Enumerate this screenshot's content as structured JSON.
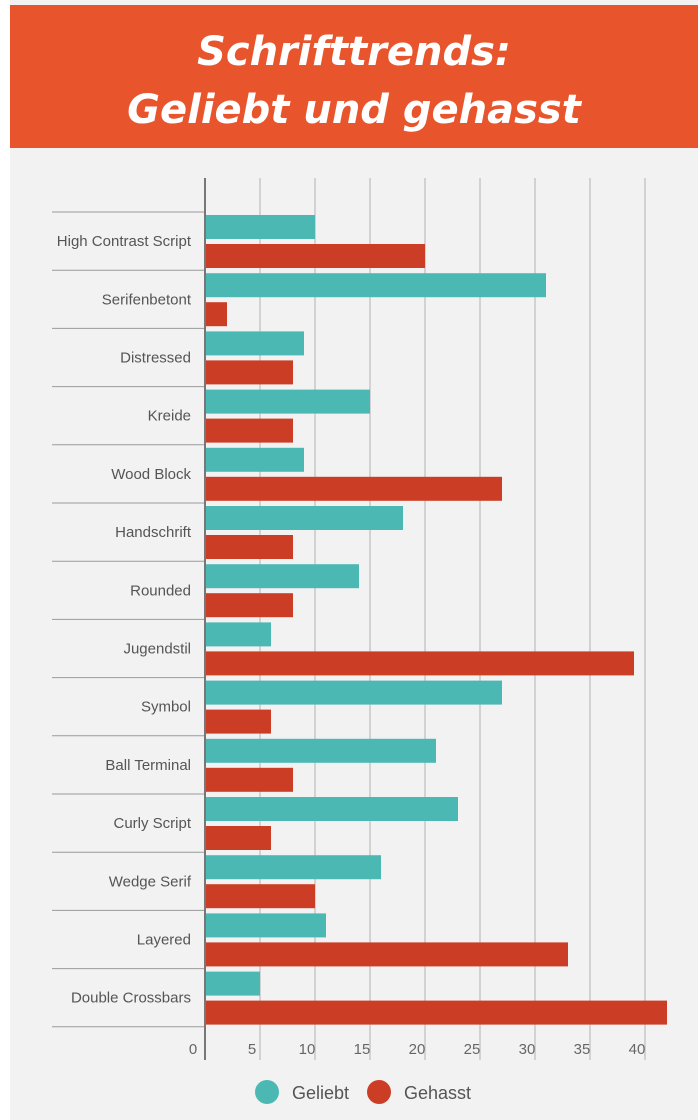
{
  "header": {
    "title_line1": "Schrifttrends:",
    "title_line2": "Geliebt und gehasst"
  },
  "colors": {
    "header_bg": "#e8542c",
    "geliebt": "#4cb8b4",
    "gehasst": "#cc3d26",
    "background": "#f2f2f2"
  },
  "chart_data": {
    "type": "bar",
    "orientation": "horizontal",
    "title": "Schrifttrends: Geliebt und gehasst",
    "categories": [
      "High Contrast Script",
      "Serifenbetont",
      "Distressed",
      "Kreide",
      "Wood Block",
      "Handschrift",
      "Rounded",
      "Jugendstil",
      "Symbol",
      "Ball Terminal",
      "Curly Script",
      "Wedge Serif",
      "Layered",
      "Double Crossbars"
    ],
    "series": [
      {
        "name": "Geliebt",
        "color": "#4cb8b4",
        "values": [
          10,
          31,
          9,
          15,
          9,
          18,
          14,
          6,
          27,
          21,
          23,
          16,
          11,
          5
        ]
      },
      {
        "name": "Gehasst",
        "color": "#cc3d26",
        "values": [
          20,
          2,
          8,
          8,
          27,
          8,
          8,
          39,
          6,
          8,
          6,
          10,
          33,
          42
        ]
      }
    ],
    "xticks": [
      0,
      5,
      10,
      15,
      20,
      25,
      30,
      35,
      40
    ],
    "xlim": [
      0,
      42
    ],
    "grid": true,
    "legend_position": "bottom"
  }
}
